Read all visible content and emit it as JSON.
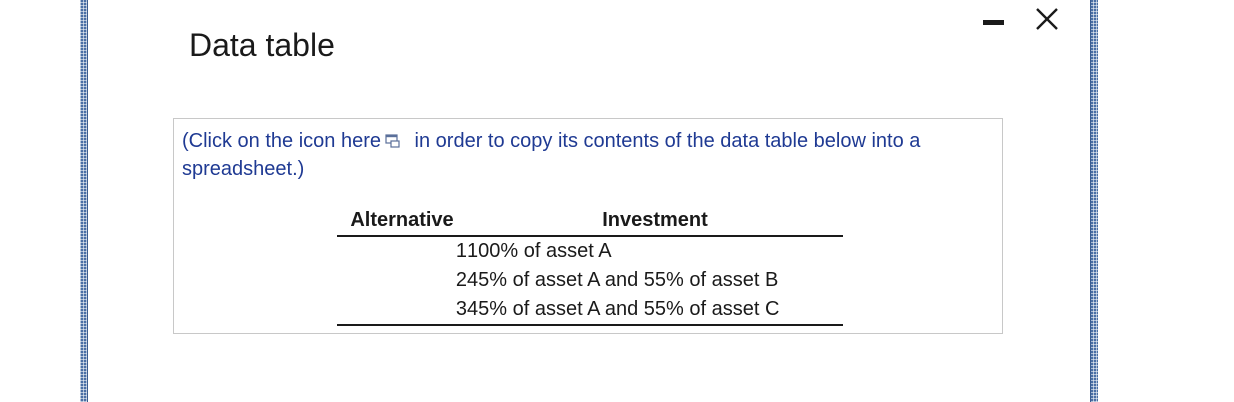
{
  "dialog": {
    "title": "Data table",
    "minimize_icon": "minimize-icon",
    "close_icon": "close-icon"
  },
  "instruction": {
    "before_icon": "(Click on the icon here",
    "icon": "copy-spreadsheet-icon",
    "after_icon": " in order to copy its contents of the data table below into a spreadsheet.)"
  },
  "table": {
    "headers": [
      "Alternative",
      "Investment"
    ],
    "rows": [
      [
        "1",
        "100% of asset A"
      ],
      [
        "2",
        "45% of asset A and 55% of asset B"
      ],
      [
        "3",
        "45% of asset A and 55% of asset C"
      ]
    ]
  },
  "colors": {
    "instruction_text": "#1f3a93",
    "frame_strip": "#4a6fa5"
  }
}
